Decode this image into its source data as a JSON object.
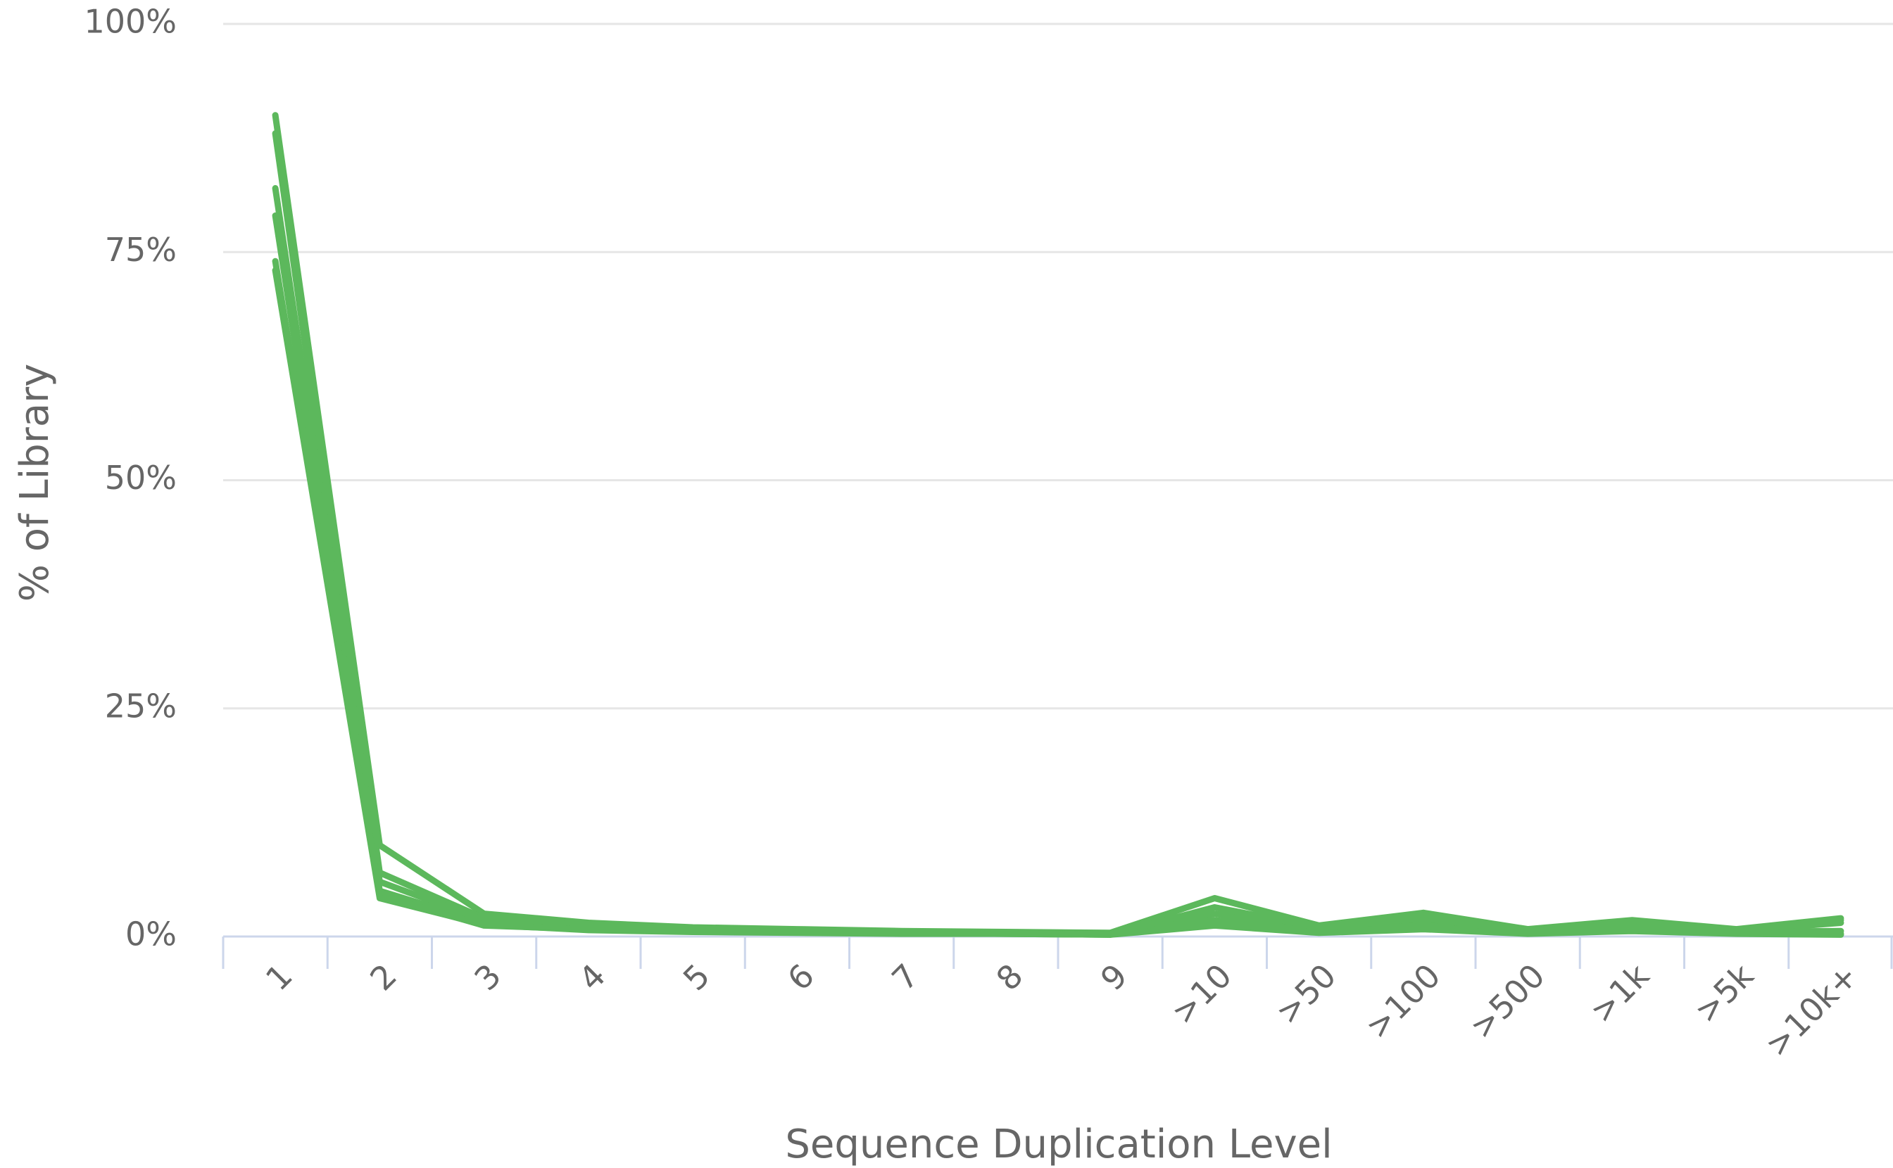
{
  "chart_data": {
    "type": "line",
    "x_label": "Sequence Duplication Level",
    "y_label": "% of Library",
    "categories": [
      "1",
      "2",
      "3",
      "4",
      "5",
      "6",
      "7",
      "8",
      "9",
      ">10",
      ">50",
      ">100",
      ">500",
      ">1k",
      ">5k",
      ">10k+"
    ],
    "series": [
      {
        "color": "#5cb85c",
        "values": [
          90,
          10,
          2.5,
          1.5,
          1,
          0.8,
          0.6,
          0.5,
          0.4,
          4.2,
          1.2,
          2.6,
          0.8,
          1.8,
          0.8,
          2
        ]
      },
      {
        "color": "#5cb85c",
        "values": [
          88,
          7,
          2,
          1.2,
          0.9,
          0.7,
          0.5,
          0.4,
          0.3,
          2.5,
          0.8,
          1.8,
          0.6,
          1.4,
          0.6,
          1.5
        ]
      },
      {
        "color": "#5cb85c",
        "values": [
          82,
          6,
          1.8,
          1,
          0.8,
          0.6,
          0.5,
          0.4,
          0.3,
          1.8,
          0.6,
          1.2,
          0.5,
          1,
          0.5,
          0.6
        ]
      },
      {
        "color": "#5cb85c",
        "values": [
          79,
          5,
          1.5,
          0.9,
          0.7,
          0.5,
          0.4,
          0.3,
          0.3,
          1.5,
          0.5,
          1,
          0.4,
          0.8,
          0.4,
          0.3
        ]
      },
      {
        "color": "#5cb85c",
        "values": [
          74,
          4.5,
          1.2,
          0.8,
          0.6,
          0.5,
          0.4,
          0.3,
          0.2,
          3.2,
          1,
          2,
          0.6,
          1.2,
          0.6,
          1.8
        ]
      },
      {
        "color": "#5cb85c",
        "values": [
          73,
          4.2,
          1.3,
          0.7,
          0.5,
          0.4,
          0.3,
          0.3,
          0.2,
          1.2,
          0.4,
          0.8,
          0.3,
          0.6,
          0.3,
          0.2
        ]
      }
    ],
    "ylim": [
      0,
      100
    ],
    "yticks": [
      {
        "value": 0,
        "label": "0%"
      },
      {
        "value": 25,
        "label": "25%"
      },
      {
        "value": 50,
        "label": "50%"
      },
      {
        "value": 75,
        "label": "75%"
      },
      {
        "value": 100,
        "label": "100%"
      }
    ],
    "grid": true
  }
}
